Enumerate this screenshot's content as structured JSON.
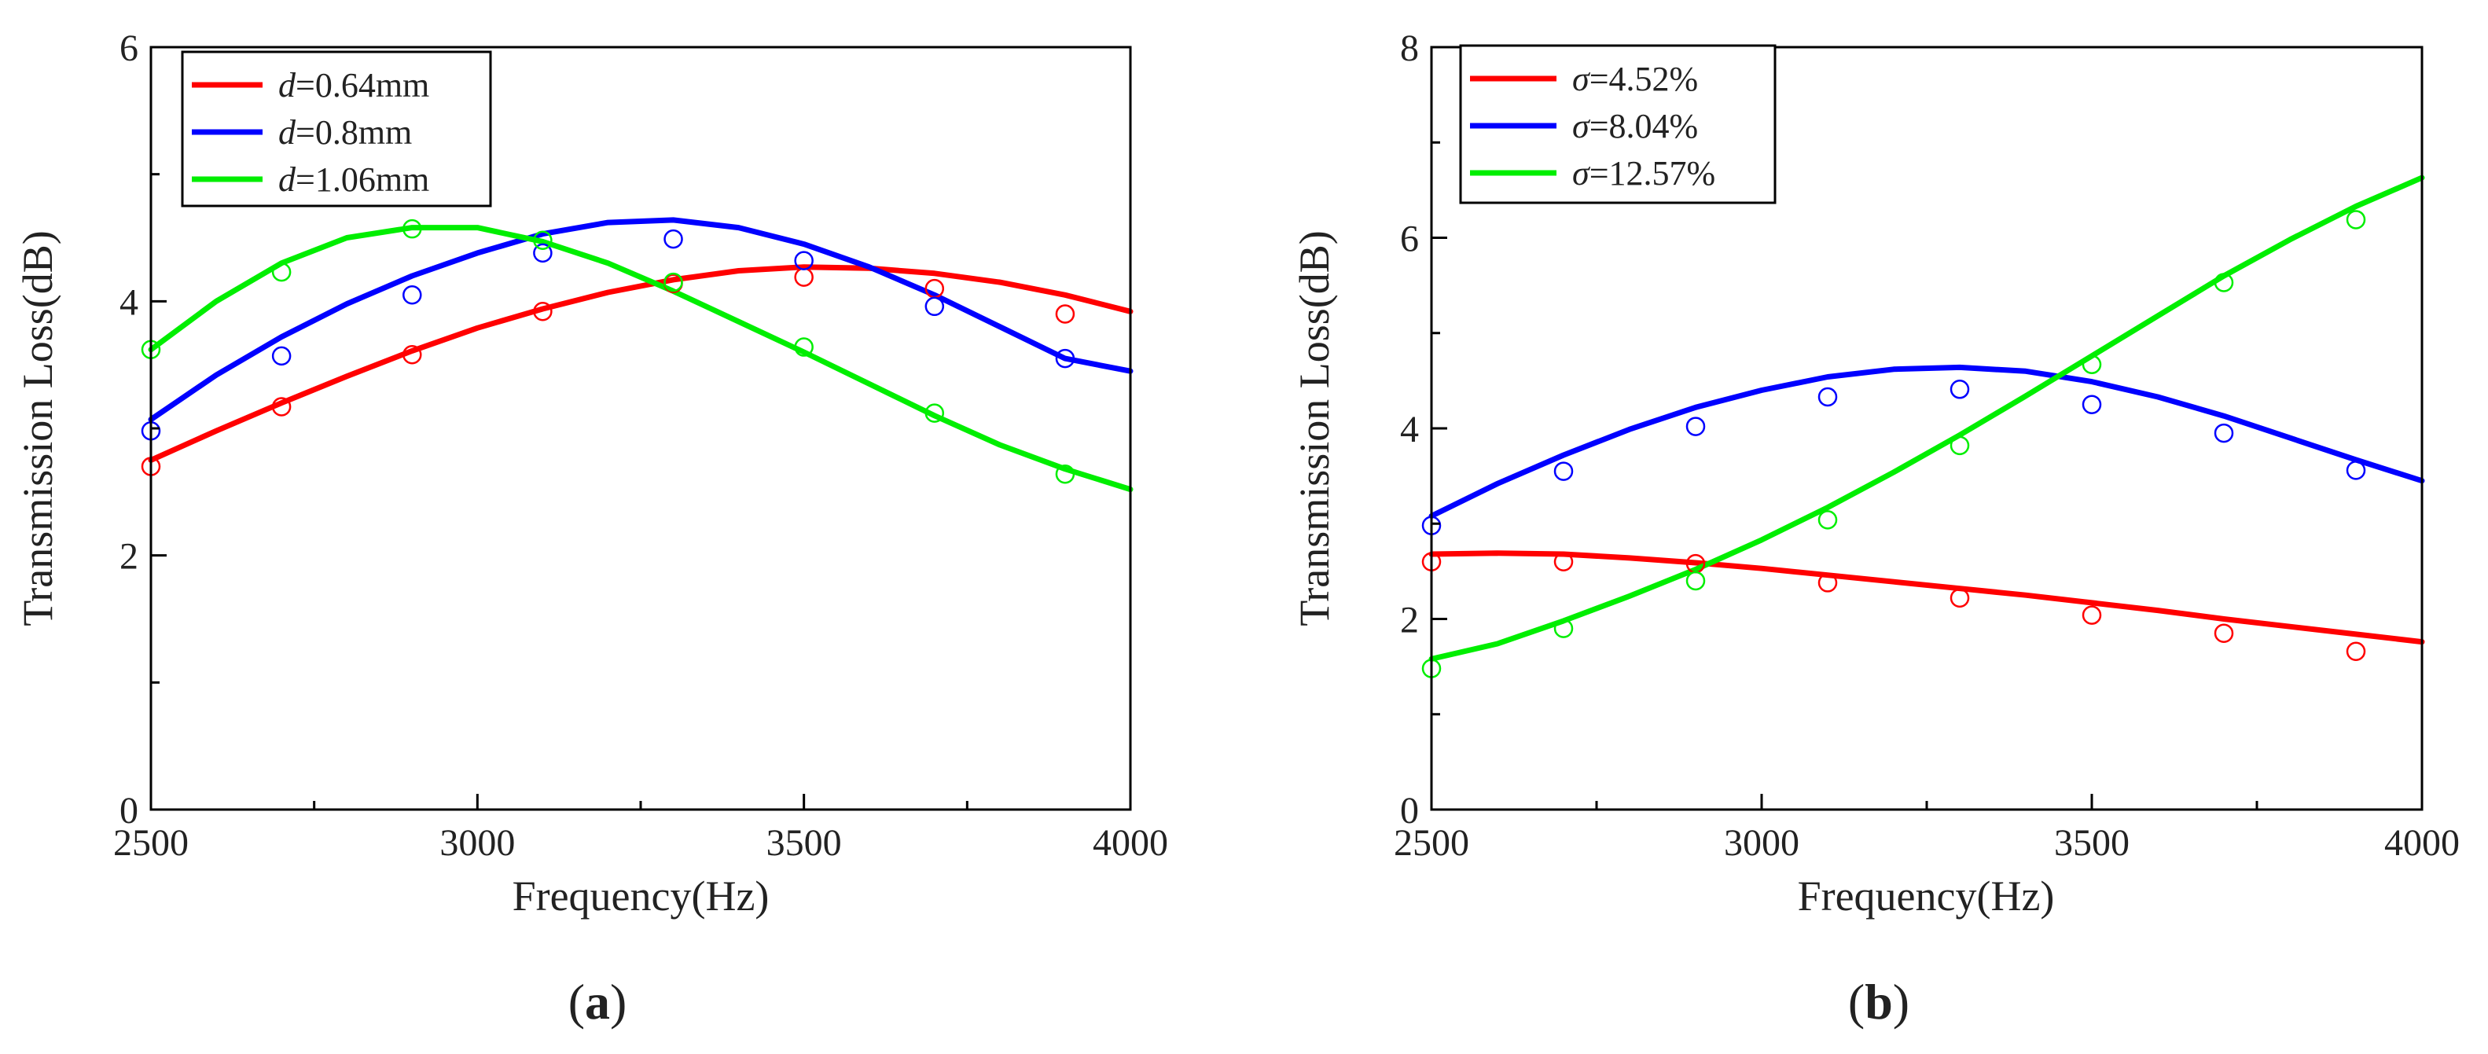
{
  "chart_data": [
    {
      "type": "line",
      "panel": "a",
      "caption_letter": "a",
      "xlabel": "Frequency(Hz)",
      "ylabel": "Transmission Loss(dB)",
      "xlim": [
        2500,
        4000
      ],
      "ylim": [
        0,
        6
      ],
      "xticks": [
        2500,
        3000,
        3500,
        4000
      ],
      "yticks": [
        0,
        2,
        4,
        6
      ],
      "legend_position": "top-left",
      "series": [
        {
          "name_var": "d",
          "name_rest": "=0.64mm",
          "color": "#ff0000",
          "curve_x": [
            2500,
            2600,
            2700,
            2800,
            2900,
            3000,
            3100,
            3200,
            3300,
            3400,
            3500,
            3600,
            3700,
            3800,
            3900,
            4000
          ],
          "curve_y": [
            2.75,
            2.98,
            3.2,
            3.41,
            3.61,
            3.79,
            3.94,
            4.07,
            4.17,
            4.24,
            4.27,
            4.26,
            4.22,
            4.15,
            4.05,
            3.92
          ],
          "markers_x": [
            2500,
            2700,
            2900,
            3100,
            3300,
            3500,
            3700,
            3900
          ],
          "markers_y": [
            2.7,
            3.17,
            3.58,
            3.92,
            4.14,
            4.19,
            4.1,
            3.9
          ]
        },
        {
          "name_var": "d",
          "name_rest": "=0.8mm",
          "color": "#0000ff",
          "curve_x": [
            2500,
            2600,
            2700,
            2800,
            2900,
            3000,
            3100,
            3200,
            3300,
            3400,
            3500,
            3600,
            3700,
            3800,
            3900,
            4000
          ],
          "curve_y": [
            3.07,
            3.42,
            3.72,
            3.98,
            4.2,
            4.38,
            4.53,
            4.62,
            4.64,
            4.58,
            4.45,
            4.27,
            4.05,
            3.8,
            3.55,
            3.45
          ],
          "markers_x": [
            2500,
            2700,
            2900,
            3100,
            3300,
            3500,
            3700,
            3900
          ],
          "markers_y": [
            2.98,
            3.57,
            4.05,
            4.38,
            4.49,
            4.32,
            3.96,
            3.55
          ]
        },
        {
          "name_var": "d",
          "name_rest": "=1.06mm",
          "color": "#00ee00",
          "curve_x": [
            2500,
            2600,
            2700,
            2800,
            2900,
            3000,
            3100,
            3200,
            3300,
            3400,
            3500,
            3600,
            3700,
            3800,
            3900,
            4000
          ],
          "curve_y": [
            3.62,
            4.0,
            4.3,
            4.5,
            4.58,
            4.58,
            4.47,
            4.3,
            4.08,
            3.84,
            3.6,
            3.35,
            3.1,
            2.87,
            2.68,
            2.52
          ],
          "markers_x": [
            2500,
            2700,
            2900,
            3100,
            3300,
            3500,
            3700,
            3900
          ],
          "markers_y": [
            3.62,
            4.23,
            4.57,
            4.48,
            4.15,
            3.64,
            3.12,
            2.64
          ]
        }
      ]
    },
    {
      "type": "line",
      "panel": "b",
      "caption_letter": "b",
      "xlabel": "Frequency(Hz)",
      "ylabel": "Transmission Loss(dB)",
      "xlim": [
        2500,
        4000
      ],
      "ylim": [
        0,
        8
      ],
      "xticks": [
        2500,
        3000,
        3500,
        4000
      ],
      "yticks": [
        0,
        2,
        4,
        6,
        8
      ],
      "legend_position": "top-left",
      "series": [
        {
          "name_var": "σ",
          "name_rest": "=4.52%",
          "color": "#ff0000",
          "curve_x": [
            2500,
            2600,
            2700,
            2800,
            2900,
            3000,
            3100,
            3200,
            3300,
            3400,
            3500,
            3600,
            3700,
            3800,
            3900,
            4000
          ],
          "curve_y": [
            2.68,
            2.69,
            2.68,
            2.64,
            2.59,
            2.53,
            2.46,
            2.39,
            2.32,
            2.25,
            2.17,
            2.09,
            2.0,
            1.92,
            1.84,
            1.76
          ],
          "markers_x": [
            2500,
            2700,
            2900,
            3100,
            3300,
            3500,
            3700,
            3900
          ],
          "markers_y": [
            2.6,
            2.6,
            2.58,
            2.38,
            2.22,
            2.04,
            1.85,
            1.66
          ]
        },
        {
          "name_var": "σ",
          "name_rest": "=8.04%",
          "color": "#0000ff",
          "curve_x": [
            2500,
            2600,
            2700,
            2800,
            2900,
            3000,
            3100,
            3200,
            3300,
            3400,
            3500,
            3600,
            3700,
            3800,
            3900,
            4000
          ],
          "curve_y": [
            3.08,
            3.42,
            3.72,
            3.99,
            4.22,
            4.4,
            4.54,
            4.62,
            4.64,
            4.6,
            4.49,
            4.33,
            4.13,
            3.9,
            3.67,
            3.45
          ],
          "markers_x": [
            2500,
            2700,
            2900,
            3100,
            3300,
            3500,
            3700,
            3900
          ],
          "markers_y": [
            2.98,
            3.55,
            4.02,
            4.33,
            4.41,
            4.25,
            3.95,
            3.56
          ]
        },
        {
          "name_var": "σ",
          "name_rest": "=12.57%",
          "color": "#00ee00",
          "curve_x": [
            2500,
            2600,
            2700,
            2800,
            2900,
            3000,
            3100,
            3200,
            3300,
            3400,
            3500,
            3600,
            3700,
            3800,
            3900,
            4000
          ],
          "curve_y": [
            1.58,
            1.74,
            1.98,
            2.24,
            2.52,
            2.83,
            3.17,
            3.54,
            3.93,
            4.34,
            4.76,
            5.18,
            5.6,
            5.98,
            6.33,
            6.63
          ],
          "markers_x": [
            2500,
            2700,
            2900,
            3100,
            3300,
            3500,
            3700,
            3900
          ],
          "markers_y": [
            1.48,
            1.9,
            2.4,
            3.04,
            3.82,
            4.67,
            5.53,
            6.19
          ]
        }
      ]
    }
  ]
}
